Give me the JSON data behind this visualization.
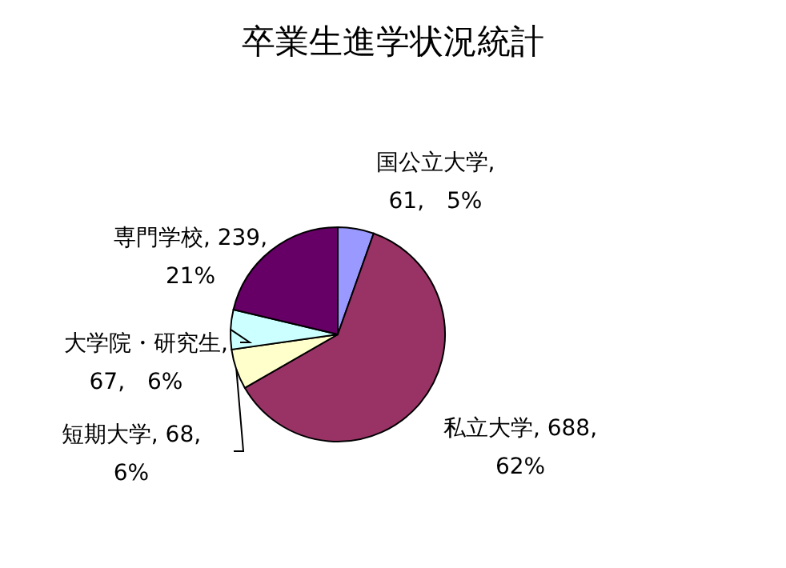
{
  "chart_data": {
    "type": "pie",
    "title": "卒業生進学状況統計",
    "categories": [
      "国公立大学",
      "私立大学",
      "短期大学",
      "大学院・研究生",
      "専門学校"
    ],
    "values": [
      61,
      688,
      68,
      67,
      239
    ],
    "value_labels": [
      ", 61,　5%",
      ", 688, 62%",
      ", 68, 6%",
      ", 67,　6%",
      ", 239, 21%"
    ],
    "colors": [
      "#9999ff",
      "#993366",
      "#ffffcc",
      "#ccffff",
      "#660066"
    ]
  }
}
